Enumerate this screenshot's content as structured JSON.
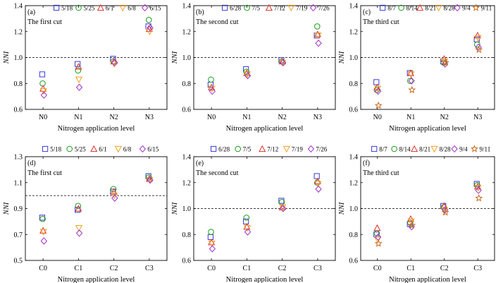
{
  "figure": {
    "xlabel": "Nitrogen application level",
    "ylabel": "NNI",
    "reference_line": 1.0
  },
  "colors": {
    "blue": "#3a3ad6",
    "green": "#1a9a1a",
    "red": "#e0302a",
    "orange": "#f0a020",
    "purple": "#a030c8",
    "brown": "#c86a1a"
  },
  "chart_data": [
    {
      "type": "scatter",
      "panel_label": "(a)",
      "annotation": "The first cut",
      "categories": [
        "N0",
        "N1",
        "N2",
        "N3"
      ],
      "xlabel": "Nitrogen application level",
      "ylabel": "NNI",
      "ylim": [
        0.6,
        1.4
      ],
      "yticks": [
        "0.6",
        "0.8",
        "1.0",
        "1.2",
        "1.4"
      ],
      "ref_line": 1.0,
      "legend_position": "top",
      "series": [
        {
          "name": "5/18",
          "marker": "square",
          "color": "blue",
          "values": [
            0.87,
            0.95,
            0.99,
            1.24
          ]
        },
        {
          "name": "5/25",
          "marker": "circle",
          "color": "green",
          "values": [
            0.8,
            0.9,
            0.97,
            1.29
          ]
        },
        {
          "name": "6/1",
          "marker": "triangle",
          "color": "red",
          "values": [
            0.76,
            0.93,
            0.97,
            1.22
          ]
        },
        {
          "name": "6/8",
          "marker": "triangle-down",
          "color": "orange",
          "values": [
            0.74,
            0.83,
            0.95,
            1.2
          ]
        },
        {
          "name": "6/15",
          "marker": "diamond",
          "color": "purple",
          "values": [
            0.71,
            0.77,
            0.96,
            1.23
          ]
        }
      ]
    },
    {
      "type": "scatter",
      "panel_label": "(b)",
      "annotation": "The second cut",
      "categories": [
        "N0",
        "N1",
        "N2",
        "N3"
      ],
      "xlabel": "Nitrogen application level",
      "ylabel": "NNI",
      "ylim": [
        0.6,
        1.4
      ],
      "yticks": [
        "0.6",
        "0.8",
        "1.0",
        "1.2",
        "1.4"
      ],
      "ref_line": 1.0,
      "legend_position": "top",
      "series": [
        {
          "name": "6/28",
          "marker": "square",
          "color": "blue",
          "values": [
            0.79,
            0.91,
            0.98,
            1.17
          ]
        },
        {
          "name": "7/5",
          "marker": "circle",
          "color": "green",
          "values": [
            0.83,
            0.89,
            0.97,
            1.24
          ]
        },
        {
          "name": "7/12",
          "marker": "triangle",
          "color": "red",
          "values": [
            0.77,
            0.88,
            0.97,
            1.18
          ]
        },
        {
          "name": "7/19",
          "marker": "triangle-down",
          "color": "orange",
          "values": [
            0.76,
            0.87,
            0.96,
            1.17
          ]
        },
        {
          "name": "7/26",
          "marker": "diamond",
          "color": "purple",
          "values": [
            0.74,
            0.86,
            0.96,
            1.11
          ]
        }
      ]
    },
    {
      "type": "scatter",
      "panel_label": "(c)",
      "annotation": "The third cut",
      "categories": [
        "N0",
        "N1",
        "N2",
        "N3"
      ],
      "xlabel": "Nitrogen application level",
      "ylabel": "NNI",
      "ylim": [
        0.6,
        1.4
      ],
      "yticks": [
        "0.6",
        "0.8",
        "1.0",
        "1.2",
        "1.4"
      ],
      "ref_line": 1.0,
      "legend_position": "top",
      "series": [
        {
          "name": "8/7",
          "marker": "square",
          "color": "blue",
          "values": [
            0.81,
            0.88,
            0.97,
            1.14
          ]
        },
        {
          "name": "8/14",
          "marker": "circle",
          "color": "green",
          "values": [
            0.75,
            0.82,
            0.96,
            1.1
          ]
        },
        {
          "name": "8/21",
          "marker": "triangle",
          "color": "red",
          "values": [
            0.77,
            0.88,
            0.99,
            1.17
          ]
        },
        {
          "name": "8/28",
          "marker": "triangle-down",
          "color": "orange",
          "values": [
            0.76,
            0.87,
            0.97,
            1.15
          ]
        },
        {
          "name": "9/4",
          "marker": "diamond",
          "color": "purple",
          "values": [
            0.74,
            0.82,
            0.95,
            1.08
          ]
        },
        {
          "name": "9/11",
          "marker": "star",
          "color": "brown",
          "values": [
            0.63,
            0.75,
            0.96,
            1.06
          ]
        }
      ]
    },
    {
      "type": "scatter",
      "panel_label": "(d)",
      "annotation": "The first cut",
      "categories": [
        "C0",
        "C1",
        "C2",
        "C3"
      ],
      "xlabel": "Nitrogen application level",
      "ylabel": "NNI",
      "ylim": [
        0.5,
        1.3
      ],
      "yticks": [
        "0.5",
        "0.7",
        "0.9",
        "1.1",
        "1.3"
      ],
      "ref_line": 1.0,
      "legend_position": "top",
      "series": [
        {
          "name": "5/18",
          "marker": "square",
          "color": "blue",
          "values": [
            0.83,
            0.89,
            1.03,
            1.15
          ]
        },
        {
          "name": "5/25",
          "marker": "circle",
          "color": "green",
          "values": [
            0.82,
            0.92,
            1.05,
            1.14
          ]
        },
        {
          "name": "6/1",
          "marker": "triangle",
          "color": "red",
          "values": [
            0.73,
            0.9,
            1.03,
            1.13
          ]
        },
        {
          "name": "6/8",
          "marker": "triangle-down",
          "color": "orange",
          "values": [
            0.72,
            0.75,
            1.0,
            1.12
          ]
        },
        {
          "name": "6/15",
          "marker": "diamond",
          "color": "purple",
          "values": [
            0.65,
            0.71,
            0.98,
            1.12
          ]
        }
      ]
    },
    {
      "type": "scatter",
      "panel_label": "(e)",
      "annotation": "The second cut",
      "categories": [
        "C0",
        "C1",
        "C2",
        "C3"
      ],
      "xlabel": "Nitrogen application level",
      "ylabel": "NNI",
      "ylim": [
        0.6,
        1.4
      ],
      "yticks": [
        "0.6",
        "0.8",
        "1.0",
        "1.2",
        "1.4"
      ],
      "ref_line": 1.0,
      "legend_position": "top",
      "series": [
        {
          "name": "6/28",
          "marker": "square",
          "color": "blue",
          "values": [
            0.78,
            0.9,
            1.06,
            1.25
          ]
        },
        {
          "name": "7/5",
          "marker": "circle",
          "color": "green",
          "values": [
            0.82,
            0.93,
            1.05,
            1.2
          ]
        },
        {
          "name": "7/12",
          "marker": "triangle",
          "color": "red",
          "values": [
            0.74,
            0.86,
            1.01,
            1.21
          ]
        },
        {
          "name": "7/19",
          "marker": "triangle-down",
          "color": "orange",
          "values": [
            0.73,
            0.85,
            1.01,
            1.19
          ]
        },
        {
          "name": "7/26",
          "marker": "diamond",
          "color": "purple",
          "values": [
            0.69,
            0.82,
            1.0,
            1.15
          ]
        }
      ]
    },
    {
      "type": "scatter",
      "panel_label": "(f)",
      "annotation": "The third cut",
      "categories": [
        "C0",
        "C1",
        "C2",
        "C3"
      ],
      "xlabel": "Nitrogen application level",
      "ylabel": "NNI",
      "ylim": [
        0.6,
        1.4
      ],
      "yticks": [
        "0.6",
        "0.8",
        "1.0",
        "1.2",
        "1.4"
      ],
      "ref_line": 1.0,
      "legend_position": "top",
      "series": [
        {
          "name": "8/7",
          "marker": "square",
          "color": "blue",
          "values": [
            0.8,
            0.88,
            1.02,
            1.19
          ]
        },
        {
          "name": "8/14",
          "marker": "circle",
          "color": "green",
          "values": [
            0.81,
            0.89,
            1.01,
            1.18
          ]
        },
        {
          "name": "8/21",
          "marker": "triangle",
          "color": "red",
          "values": [
            0.85,
            0.92,
            1.02,
            1.17
          ]
        },
        {
          "name": "8/28",
          "marker": "triangle-down",
          "color": "orange",
          "values": [
            0.76,
            0.9,
            0.99,
            1.16
          ]
        },
        {
          "name": "9/4",
          "marker": "diamond",
          "color": "purple",
          "values": [
            0.78,
            0.86,
            0.99,
            1.14
          ]
        },
        {
          "name": "9/11",
          "marker": "star",
          "color": "brown",
          "values": [
            0.73,
            0.87,
            0.97,
            1.08
          ]
        }
      ]
    }
  ]
}
